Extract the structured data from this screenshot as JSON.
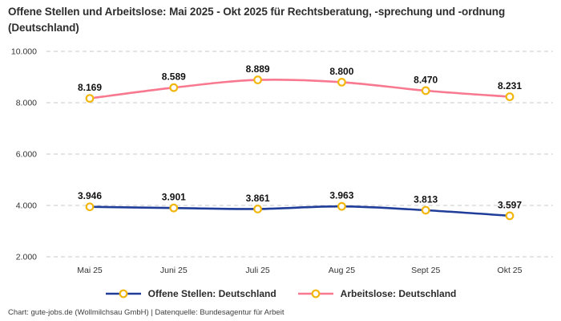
{
  "title": "Offene Stellen und Arbeitslose: Mai 2025 - Okt 2025 für Rechtsberatung, -sprechung und -ordnung (Deutschland)",
  "footer": "Chart: gute-jobs.de (Wollmilchsau GmbH) | Datenquelle: Bundesagentur für Arbeit",
  "colors": {
    "offene_stellen_line": "#203d99",
    "arbeitslose_line": "#f8798f",
    "marker_ring": "#f2b70e",
    "marker_fill": "#ffffff",
    "grid": "#c9c9c9",
    "title_text": "#2e2e2e",
    "data_label_text": "#111111",
    "axis_text": "#333333",
    "footer_text": "#404040"
  },
  "chart_data": {
    "type": "line",
    "title": "Offene Stellen und Arbeitslose: Mai 2025 - Okt 2025 für Rechtsberatung, -sprechung und -ordnung (Deutschland)",
    "categories": [
      "Mai 25",
      "Juni 25",
      "Juli 25",
      "Aug 25",
      "Sept 25",
      "Okt 25"
    ],
    "series": [
      {
        "name": "Offene Stellen: Deutschland",
        "color": "#203d99",
        "values": [
          3946,
          3901,
          3861,
          3963,
          3813,
          3597
        ],
        "labels": [
          "3.946",
          "3.901",
          "3.861",
          "3.963",
          "3.813",
          "3.597"
        ]
      },
      {
        "name": "Arbeitslose: Deutschland",
        "color": "#f8798f",
        "values": [
          8169,
          8589,
          8889,
          8800,
          8470,
          8231
        ],
        "labels": [
          "8.169",
          "8.589",
          "8.889",
          "8.800",
          "8.470",
          "8.231"
        ]
      }
    ],
    "y_ticks": [
      10000,
      8000,
      6000,
      4000,
      2000
    ],
    "y_tick_labels": [
      "10.000",
      "8.000",
      "6.000",
      "4.000",
      "2.000"
    ],
    "ylim": [
      2000,
      10000
    ],
    "grid": "horizontal-dashed",
    "legend_position": "bottom",
    "marker": "open-circle-gold"
  }
}
